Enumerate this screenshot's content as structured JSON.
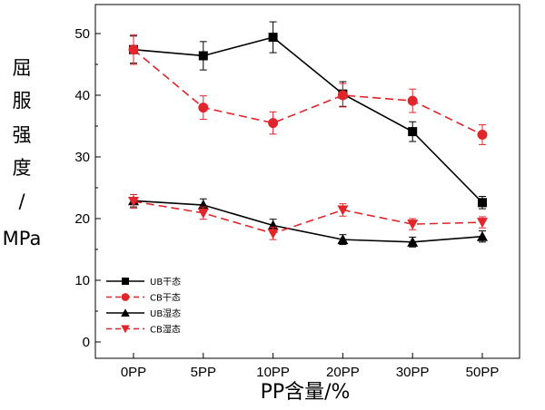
{
  "chart_data": {
    "type": "line",
    "categories": [
      "0PP",
      "5PP",
      "10PP",
      "20PP",
      "30PP",
      "50PP"
    ],
    "xlabel": "PP含量/%",
    "ylabel_chars": [
      "屈",
      "服",
      "强",
      "度",
      "/",
      "MPa"
    ],
    "ylim": [
      0,
      55
    ],
    "yticks": [
      0,
      10,
      20,
      30,
      40,
      50
    ],
    "legend_position": "bottom-left",
    "series": [
      {
        "name": "UB干态",
        "values": [
          47.4,
          46.4,
          49.4,
          40.2,
          34.1,
          22.6
        ],
        "errors": [
          2.2,
          2.3,
          2.5,
          2.0,
          1.6,
          1.0
        ],
        "color": "#000000",
        "marker": "square",
        "dash": "solid"
      },
      {
        "name": "CB干态",
        "values": [
          47.4,
          38.0,
          35.5,
          40.0,
          39.1,
          33.6
        ],
        "errors": [
          2.4,
          1.9,
          1.8,
          1.9,
          1.9,
          1.6
        ],
        "color": "#e0262a",
        "marker": "circle",
        "dash": "dashed"
      },
      {
        "name": "UB湿态",
        "values": [
          22.9,
          22.2,
          18.9,
          16.6,
          16.2,
          17.1
        ],
        "errors": [
          1.0,
          1.0,
          1.0,
          0.8,
          0.8,
          0.9
        ],
        "color": "#000000",
        "marker": "triangle-up",
        "dash": "solid"
      },
      {
        "name": "CB湿态",
        "values": [
          22.8,
          20.9,
          17.6,
          21.4,
          19.1,
          19.4
        ],
        "errors": [
          1.1,
          1.0,
          1.0,
          1.0,
          0.9,
          0.9
        ],
        "color": "#e0262a",
        "marker": "triangle-down",
        "dash": "dashed"
      }
    ]
  }
}
